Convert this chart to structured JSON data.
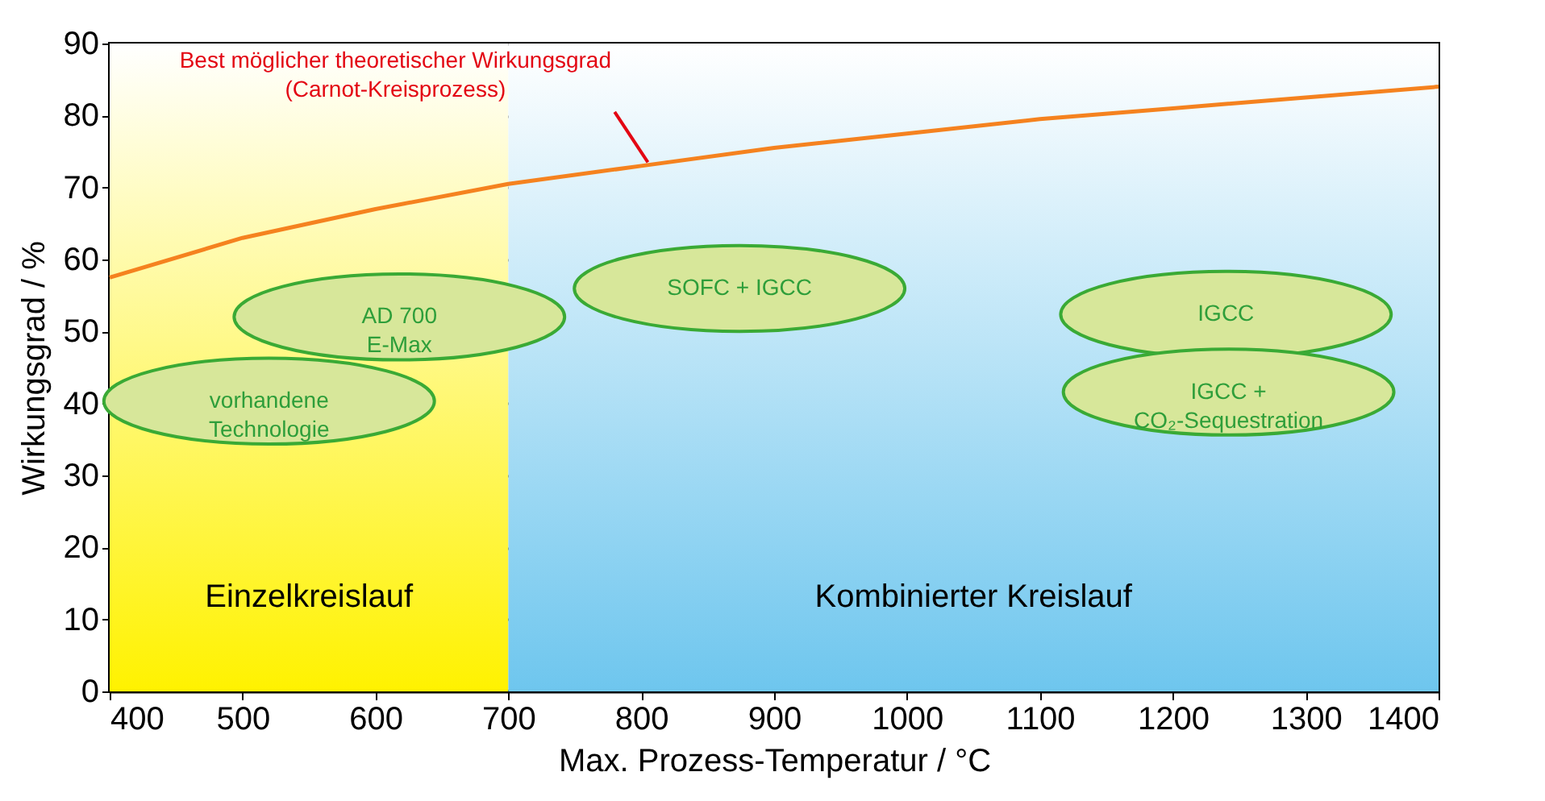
{
  "chart_data": {
    "type": "line",
    "xlabel": "Max. Prozess-Temperatur  / °C",
    "ylabel": "Wirkungsgrad  / %",
    "x": [
      400,
      500,
      600,
      700,
      800,
      900,
      1000,
      1100,
      1200,
      1300,
      1400
    ],
    "series": [
      {
        "color": "#f5821f",
        "values": [
          57.5,
          63,
          67,
          70.5,
          73,
          75.5,
          77.5,
          79.5,
          81,
          82.5,
          84
        ]
      }
    ],
    "xlim": [
      400,
      1400
    ],
    "xticks": [
      400,
      500,
      600,
      700,
      800,
      900,
      1000,
      1100,
      1200,
      1300,
      1400
    ],
    "ylim": [
      0,
      90
    ],
    "yticks": [
      0,
      10,
      20,
      30,
      40,
      50,
      60,
      70,
      80,
      90
    ],
    "grid": "y",
    "bands": [
      {
        "axis": "x",
        "from": 400,
        "to": 700,
        "label": "Einzelkreislauf",
        "color": "#fff200"
      },
      {
        "axis": "x",
        "from": 700,
        "to": 1400,
        "label": "Kombinierter Kreislauf",
        "color": "#6ec6ee"
      }
    ],
    "annotations": [
      {
        "text": "Best möglicher theoretischer Wirkungsgrad\n(Carnot-Kreisprozess)",
        "x": 805,
        "y": 73.5
      },
      "vorhandene\nTechnologie",
      "AD 700\nE-Max",
      "SOFC + IGCC",
      "IGCC",
      "IGCC +\nCO₂-Sequestration"
    ]
  }
}
